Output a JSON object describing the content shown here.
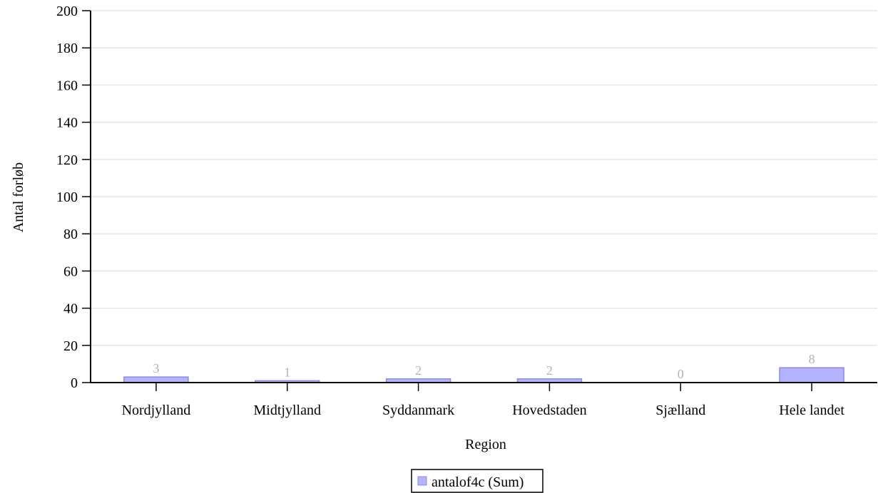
{
  "chart_data": {
    "type": "bar",
    "categories": [
      "Nordjylland",
      "Midtjylland",
      "Syddanmark",
      "Hovedstaden",
      "Sjælland",
      "Hele landet"
    ],
    "series": [
      {
        "name": "antalof4c (Sum)",
        "values": [
          3,
          1,
          2,
          2,
          0,
          8
        ],
        "color": "#b3b3ff",
        "stroke": "#8c8cd9"
      }
    ],
    "xlabel": "Region",
    "ylabel": "Antal forløb",
    "ylim": [
      0,
      200
    ],
    "yticks": [
      0,
      20,
      40,
      60,
      80,
      100,
      120,
      140,
      160,
      180,
      200
    ],
    "grid": true,
    "gridColor": "#e6e6e6",
    "data_label_color": "#b3b3b3",
    "legend_position": "bottom-center"
  }
}
